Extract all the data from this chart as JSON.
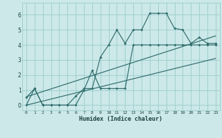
{
  "title": "",
  "xlabel": "Humidex (Indice chaleur)",
  "background_color": "#cce8e8",
  "grid_color": "#99cccc",
  "line_color": "#2f6b6b",
  "x_values": [
    0,
    1,
    2,
    3,
    4,
    5,
    6,
    7,
    8,
    9,
    10,
    11,
    12,
    13,
    14,
    15,
    16,
    17,
    18,
    19,
    20,
    21,
    22,
    23
  ],
  "main_y": [
    0.5,
    1.1,
    0.0,
    0.0,
    0.0,
    0.0,
    0.6,
    1.1,
    1.1,
    3.2,
    4.0,
    5.0,
    4.1,
    5.0,
    5.0,
    6.1,
    6.1,
    6.1,
    5.1,
    5.0,
    4.1,
    4.5,
    4.1,
    4.1
  ],
  "curve2_y": [
    0.0,
    1.1,
    0.0,
    0.0,
    0.0,
    0.0,
    0.0,
    1.0,
    2.3,
    1.1,
    1.1,
    1.1,
    1.1,
    4.0,
    4.0,
    4.0,
    4.0,
    4.0,
    4.0,
    4.0,
    4.0,
    4.0,
    4.0,
    4.0
  ],
  "diag1_y_start": 0.0,
  "diag1_y_end": 3.1,
  "diag2_y_start": 0.55,
  "diag2_y_end": 4.6,
  "xlim": [
    -0.5,
    23.5
  ],
  "ylim": [
    -0.35,
    6.8
  ],
  "yticks": [
    0,
    1,
    2,
    3,
    4,
    5,
    6
  ],
  "xticks": [
    0,
    1,
    2,
    3,
    4,
    5,
    6,
    7,
    8,
    9,
    10,
    11,
    12,
    13,
    14,
    15,
    16,
    17,
    18,
    19,
    20,
    21,
    22,
    23
  ]
}
